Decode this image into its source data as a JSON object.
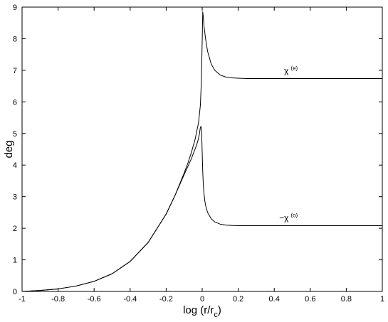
{
  "chart_data": {
    "type": "line",
    "title": "",
    "xlabel_main": "log (r/r",
    "xlabel_sub": "c",
    "xlabel_close": ")",
    "ylabel": "deg",
    "xlim": [
      -1,
      1
    ],
    "ylim": [
      0,
      9
    ],
    "grid": false,
    "x_ticks": [
      "-1",
      "-0.8",
      "-0.6",
      "-0.4",
      "-0.2",
      "0",
      "0.2",
      "0.4",
      "0.6",
      "0.8",
      "1"
    ],
    "y_ticks": [
      "0",
      "1",
      "2",
      "3",
      "4",
      "5",
      "6",
      "7",
      "8",
      "9"
    ],
    "series": [
      {
        "name": "χ",
        "name_sup": "(e)",
        "x": [
          -1,
          -0.9,
          -0.8,
          -0.7,
          -0.6,
          -0.5,
          -0.4,
          -0.3,
          -0.2,
          -0.15,
          -0.1,
          -0.08,
          -0.06,
          -0.04,
          -0.02,
          -0.01,
          -0.005,
          0,
          0.003,
          0.006,
          0.01,
          0.02,
          0.03,
          0.05,
          0.07,
          0.1,
          0.13,
          0.16,
          0.2,
          0.25,
          0.3,
          0.4,
          0.5,
          0.6,
          0.7,
          0.8,
          0.9,
          1
        ],
        "y": [
          0,
          0.03,
          0.08,
          0.17,
          0.32,
          0.56,
          0.95,
          1.55,
          2.45,
          3.05,
          3.75,
          4.05,
          4.4,
          4.8,
          5.35,
          5.9,
          6.6,
          7.9,
          8.85,
          8.7,
          8.4,
          7.95,
          7.6,
          7.2,
          7.0,
          6.85,
          6.79,
          6.76,
          6.75,
          6.74,
          6.74,
          6.74,
          6.74,
          6.74,
          6.74,
          6.74,
          6.74,
          6.74
        ]
      },
      {
        "name": "−χ",
        "name_sup": "(o)",
        "x": [
          -1,
          -0.9,
          -0.8,
          -0.7,
          -0.6,
          -0.5,
          -0.4,
          -0.3,
          -0.2,
          -0.15,
          -0.1,
          -0.08,
          -0.06,
          -0.04,
          -0.03,
          -0.02,
          -0.015,
          -0.01,
          -0.006,
          -0.003,
          0,
          0.003,
          0.006,
          0.01,
          0.015,
          0.02,
          0.03,
          0.05,
          0.07,
          0.1,
          0.13,
          0.16,
          0.2,
          0.25,
          0.3,
          0.4,
          0.5,
          0.6,
          0.7,
          0.8,
          0.9,
          1
        ],
        "y": [
          0,
          0.03,
          0.08,
          0.17,
          0.32,
          0.56,
          0.95,
          1.55,
          2.45,
          3.05,
          3.7,
          3.95,
          4.2,
          4.5,
          4.65,
          4.85,
          5.0,
          5.2,
          5.22,
          5.0,
          4.4,
          3.8,
          3.4,
          3.1,
          2.85,
          2.7,
          2.5,
          2.3,
          2.2,
          2.13,
          2.1,
          2.09,
          2.08,
          2.08,
          2.08,
          2.08,
          2.08,
          2.08,
          2.08,
          2.08,
          2.08,
          2.08
        ]
      }
    ]
  }
}
